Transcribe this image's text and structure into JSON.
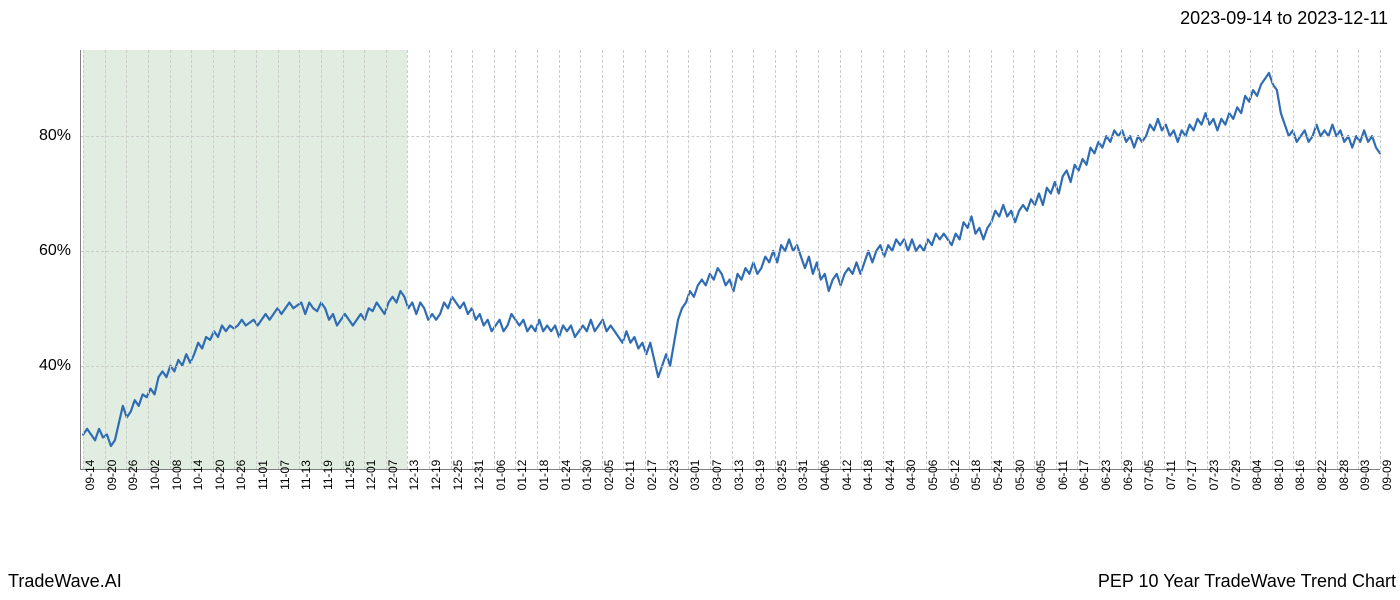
{
  "header": {
    "date_range": "2023-09-14 to 2023-12-11"
  },
  "footer": {
    "brand": "TradeWave.AI",
    "chart_title": "PEP 10 Year TradeWave Trend Chart"
  },
  "chart": {
    "type": "line",
    "background_color": "#ffffff",
    "grid_color": "#cccccc",
    "axis_color": "#808080",
    "line_color": "#2f6cb3",
    "line_width": 2.2,
    "highlight": {
      "fill_color": "#dceadc",
      "opacity": 0.85,
      "x_start_index": 0,
      "x_end_index": 15
    },
    "y_axis": {
      "min": 22,
      "max": 95,
      "ticks": [
        40,
        60,
        80
      ],
      "tick_labels": [
        "40%",
        "60%",
        "80%"
      ],
      "label_fontsize": 16
    },
    "x_axis": {
      "labels": [
        "09-14",
        "09-20",
        "09-26",
        "10-02",
        "10-08",
        "10-14",
        "10-20",
        "10-26",
        "11-01",
        "11-07",
        "11-13",
        "11-19",
        "11-25",
        "12-01",
        "12-07",
        "12-13",
        "12-19",
        "12-25",
        "12-31",
        "01-06",
        "01-12",
        "01-18",
        "01-24",
        "01-30",
        "02-05",
        "02-11",
        "02-17",
        "02-23",
        "03-01",
        "03-07",
        "03-13",
        "03-19",
        "03-25",
        "03-31",
        "04-06",
        "04-12",
        "04-18",
        "04-24",
        "04-30",
        "05-06",
        "05-12",
        "05-18",
        "05-24",
        "05-30",
        "06-05",
        "06-11",
        "06-17",
        "06-23",
        "06-29",
        "07-05",
        "07-11",
        "07-17",
        "07-23",
        "07-29",
        "08-04",
        "08-10",
        "08-16",
        "08-22",
        "08-28",
        "09-03",
        "09-09"
      ],
      "label_fontsize": 12,
      "rotation": -90
    },
    "series": {
      "values": [
        28,
        29,
        28,
        27,
        29,
        27.5,
        28,
        26,
        27,
        30,
        33,
        31,
        32,
        34,
        33,
        35,
        34.5,
        36,
        35,
        38,
        39,
        38,
        40,
        39,
        41,
        40,
        42,
        40.5,
        42,
        44,
        43,
        45,
        44.5,
        46,
        45,
        47,
        46,
        47,
        46.5,
        47,
        48,
        47,
        47.5,
        48,
        47,
        48,
        49,
        48,
        49,
        50,
        49,
        50,
        51,
        50,
        50.5,
        51,
        49,
        51,
        50,
        49.5,
        51,
        50,
        48,
        49,
        47,
        48,
        49,
        48,
        47,
        48,
        49,
        48,
        50,
        49.5,
        51,
        50,
        49,
        51,
        52,
        51,
        53,
        52,
        50,
        51,
        49,
        51,
        50,
        48,
        49,
        48,
        49,
        51,
        50,
        52,
        51,
        50,
        51,
        49,
        50,
        48,
        49,
        47,
        48,
        46,
        47,
        48,
        46,
        47,
        49,
        48,
        47,
        48,
        46,
        47,
        46,
        48,
        46,
        47,
        46,
        47,
        45,
        47,
        46,
        47,
        45,
        46,
        47,
        46,
        48,
        46,
        47,
        48,
        46,
        47,
        46,
        45,
        44,
        46,
        44,
        45,
        43,
        44,
        42,
        44,
        41,
        38,
        40,
        42,
        40,
        44,
        48,
        50,
        51,
        53,
        52,
        54,
        55,
        54,
        56,
        55,
        57,
        56,
        54,
        55,
        53,
        56,
        55,
        57,
        56,
        58,
        56,
        57,
        59,
        58,
        60,
        58,
        61,
        60,
        62,
        60,
        61,
        59,
        57,
        59,
        56,
        58,
        55,
        56,
        53,
        55,
        56,
        54,
        56,
        57,
        56,
        58,
        56,
        58,
        60,
        58,
        60,
        61,
        59,
        61,
        60,
        62,
        61,
        62,
        60,
        62,
        60,
        61,
        60,
        62,
        61,
        63,
        62,
        63,
        62,
        61,
        63,
        62,
        65,
        64,
        66,
        63,
        64,
        62,
        64,
        65,
        67,
        66,
        68,
        66,
        67,
        65,
        67,
        68,
        67,
        69,
        68,
        70,
        68,
        71,
        70,
        72,
        70,
        73,
        74,
        72,
        75,
        74,
        76,
        75,
        78,
        77,
        79,
        78,
        80,
        79,
        81,
        80,
        81,
        79,
        80,
        78,
        80,
        79,
        80,
        82,
        81,
        83,
        81,
        82,
        80,
        81,
        79,
        81,
        80,
        82,
        81,
        83,
        82,
        84,
        82,
        83,
        81,
        83,
        82,
        84,
        83,
        85,
        84,
        87,
        86,
        88,
        87,
        89,
        90,
        91,
        89,
        88,
        84,
        82,
        80,
        81,
        79,
        80,
        81,
        79,
        80,
        82,
        80,
        81,
        80,
        82,
        80,
        81,
        79,
        80,
        78,
        80,
        79,
        81,
        79,
        80,
        78,
        77
      ]
    }
  }
}
